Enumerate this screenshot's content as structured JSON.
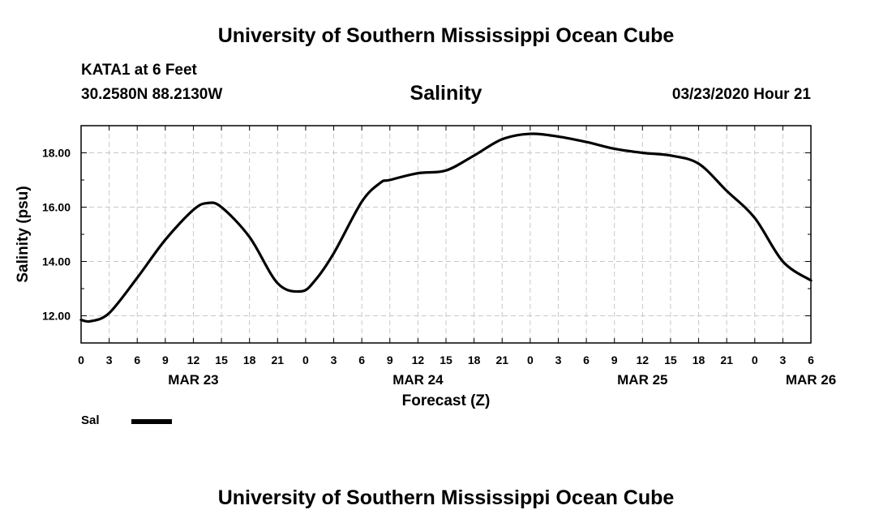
{
  "header": {
    "title": "University of Southern Mississippi Ocean Cube",
    "station": "KATA1 at 6 Feet",
    "coords": "30.2580N 88.2130W",
    "subtitle": "Salinity",
    "issued": "03/23/2020 Hour 21"
  },
  "footer": {
    "title": "University of Southern Mississippi Ocean Cube"
  },
  "legend": {
    "label": "Sal"
  },
  "chart_data": {
    "type": "line",
    "title": "Salinity",
    "xlabel": "Forecast (Z)",
    "ylabel": "Salinity (psu)",
    "xlim": [
      0,
      78
    ],
    "ylim": [
      11.0,
      19.0
    ],
    "y_ticks": [
      12,
      14,
      16,
      18
    ],
    "y_tick_labels": [
      "12.00",
      "14.00",
      "16.00",
      "18.00"
    ],
    "x_tick_labels": [
      "0",
      "3",
      "6",
      "9",
      "12",
      "15",
      "18",
      "21",
      "0",
      "3",
      "6",
      "9",
      "12",
      "15",
      "18",
      "21",
      "0",
      "3",
      "6",
      "9",
      "12",
      "15",
      "18",
      "21",
      "0",
      "3",
      "6"
    ],
    "date_labels": [
      {
        "hour": 12,
        "label": "MAR 23"
      },
      {
        "hour": 36,
        "label": "MAR 24"
      },
      {
        "hour": 60,
        "label": "MAR 25"
      },
      {
        "hour": 78,
        "label": "MAR 26"
      }
    ],
    "grid": true,
    "series": [
      {
        "name": "Sal",
        "color": "#000000",
        "x": [
          0,
          1,
          3,
          6,
          9,
          12,
          13.5,
          15,
          18,
          21,
          23.5,
          25,
          27,
          30,
          32,
          33,
          36,
          39,
          42,
          45,
          48,
          51,
          54,
          57,
          60,
          63,
          66,
          69,
          72,
          75,
          78
        ],
        "y": [
          11.85,
          11.8,
          12.1,
          13.4,
          14.8,
          15.9,
          16.15,
          16.0,
          14.9,
          13.2,
          12.9,
          13.3,
          14.3,
          16.2,
          16.9,
          17.0,
          17.25,
          17.35,
          17.9,
          18.5,
          18.7,
          18.6,
          18.4,
          18.15,
          18.0,
          17.9,
          17.6,
          16.6,
          15.6,
          14.0,
          13.3
        ]
      }
    ]
  }
}
